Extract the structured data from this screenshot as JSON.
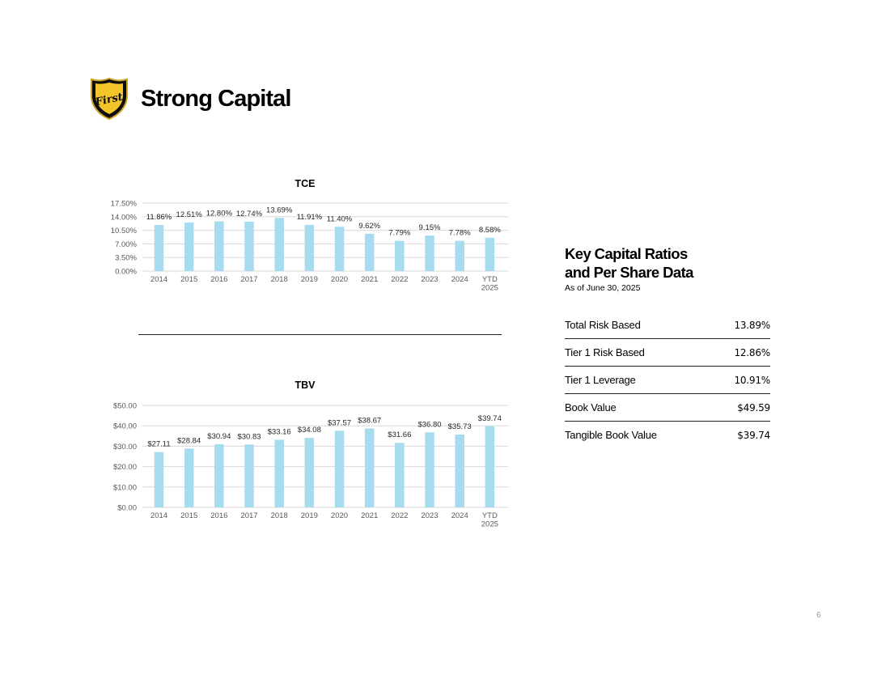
{
  "header": {
    "title": "Strong Capital",
    "logo_text": "First"
  },
  "charts_style": {
    "bar_color": "#a7dbf0",
    "grid_color": "#d9d9d9",
    "axis_text_color": "#595959"
  },
  "chart_data": [
    {
      "type": "bar",
      "title": "TCE",
      "categories": [
        "2014",
        "2015",
        "2016",
        "2017",
        "2018",
        "2019",
        "2020",
        "2021",
        "2022",
        "2023",
        "2024",
        "YTD 2025"
      ],
      "values": [
        11.86,
        12.51,
        12.8,
        12.74,
        13.69,
        11.91,
        11.4,
        9.62,
        7.79,
        9.15,
        7.78,
        8.58
      ],
      "data_labels": [
        "11.86%",
        "12.51%",
        "12.80%",
        "12.74%",
        "13.69%",
        "11.91%",
        "11.40%",
        "9.62%",
        "7.79%",
        "9.15%",
        "7.78%",
        "8.58%"
      ],
      "yticks": [
        0,
        3.5,
        7,
        10.5,
        14,
        17.5
      ],
      "ytick_labels": [
        "0.00%",
        "3.50%",
        "7.00%",
        "10.50%",
        "14.00%",
        "17.50%"
      ],
      "ylim": [
        0,
        17.5
      ],
      "grid": true
    },
    {
      "type": "bar",
      "title": "TBV",
      "categories": [
        "2014",
        "2015",
        "2016",
        "2017",
        "2018",
        "2019",
        "2020",
        "2021",
        "2022",
        "2023",
        "2024",
        "YTD 2025"
      ],
      "values": [
        27.11,
        28.84,
        30.94,
        30.83,
        33.16,
        34.08,
        37.57,
        38.67,
        31.66,
        36.8,
        35.73,
        39.74
      ],
      "data_labels": [
        "$27.11",
        "$28.84",
        "$30.94",
        "$30.83",
        "$33.16",
        "$34.08",
        "$37.57",
        "$38.67",
        "$31.66",
        "$36.80",
        "$35.73",
        "$39.74"
      ],
      "yticks": [
        0,
        10,
        20,
        30,
        40,
        50
      ],
      "ytick_labels": [
        "$0.00",
        "$10.00",
        "$20.00",
        "$30.00",
        "$40.00",
        "$50.00"
      ],
      "ylim": [
        0,
        50
      ],
      "grid": true
    }
  ],
  "panel": {
    "title_line1": "Key Capital Ratios",
    "title_line2": "and Per Share Data",
    "subtitle": "As of June 30, 2025",
    "rows": [
      {
        "label": "Total Risk Based",
        "value": "13.89%"
      },
      {
        "label": "Tier 1 Risk Based",
        "value": "12.86%"
      },
      {
        "label": "Tier 1 Leverage",
        "value": "10.91%"
      },
      {
        "label": "Book Value",
        "value": "$49.59"
      },
      {
        "label": "Tangible Book Value",
        "value": "$39.74"
      }
    ]
  },
  "footer": {
    "page_number": "6"
  }
}
